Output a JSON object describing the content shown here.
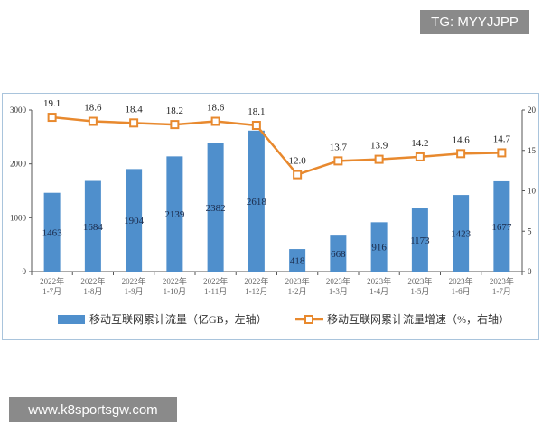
{
  "watermarks": {
    "top": "TG: MYYJJPP",
    "bottom": "www.k8sportsgw.com"
  },
  "chart_data": {
    "type": "bar+line",
    "categories": [
      [
        "2022年",
        "1-7月"
      ],
      [
        "2022年",
        "1-8月"
      ],
      [
        "2022年",
        "1-9月"
      ],
      [
        "2022年",
        "1-10月"
      ],
      [
        "2022年",
        "1-11月"
      ],
      [
        "2022年",
        "1-12月"
      ],
      [
        "2023年",
        "1-2月"
      ],
      [
        "2023年",
        "1-3月"
      ],
      [
        "2023年",
        "1-4月"
      ],
      [
        "2023年",
        "1-5月"
      ],
      [
        "2023年",
        "1-6月"
      ],
      [
        "2023年",
        "1-7月"
      ]
    ],
    "series": [
      {
        "name": "移动互联网累计流量（亿GB，左轴）",
        "type": "bar",
        "axis": "left",
        "color": "#4f8fcc",
        "values": [
          1463,
          1684,
          1904,
          2139,
          2382,
          2618,
          418,
          668,
          916,
          1173,
          1423,
          1677
        ]
      },
      {
        "name": "移动互联网累计流量增速（%，右轴）",
        "type": "line",
        "axis": "right",
        "color": "#e8892e",
        "values": [
          19.1,
          18.6,
          18.4,
          18.2,
          18.6,
          18.1,
          12.0,
          13.7,
          13.9,
          14.2,
          14.6,
          14.7
        ],
        "labels": [
          "19.1",
          "18.6",
          "18.4",
          "18.2",
          "18.6",
          "18.1",
          "12.0",
          "13.7",
          "13.9",
          "14.2",
          "14.6",
          "14.7"
        ]
      }
    ],
    "left_axis": {
      "range": [
        0,
        3000
      ],
      "ticks": [
        "0",
        "1000",
        "2000",
        "3000"
      ]
    },
    "right_axis": {
      "range": [
        0,
        20
      ],
      "ticks": [
        "0",
        "5",
        "10",
        "15",
        "20"
      ]
    },
    "legend_position": "bottom",
    "grid": false
  }
}
